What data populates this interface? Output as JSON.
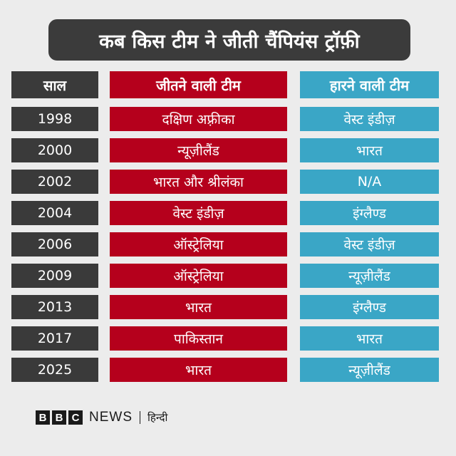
{
  "title": "कब किस टीम ने जीती चैंपियंस ट्रॉफ़ी",
  "table": {
    "headers": {
      "year": "साल",
      "winner": "जीतने वाली टीम",
      "loser": "हारने वाली टीम"
    },
    "rows": [
      {
        "year": "1998",
        "winner": "दक्षिण अफ़्रीका",
        "loser": "वेस्ट इंडीज़"
      },
      {
        "year": "2000",
        "winner": "न्यूज़ीलैंड",
        "loser": "भारत"
      },
      {
        "year": "2002",
        "winner": "भारत और श्रीलंका",
        "loser": "N/A"
      },
      {
        "year": "2004",
        "winner": "वेस्ट इंडीज़",
        "loser": "इंग्लैण्ड"
      },
      {
        "year": "2006",
        "winner": "ऑस्ट्रेलिया",
        "loser": "वेस्ट इंडीज़"
      },
      {
        "year": "2009",
        "winner": "ऑस्ट्रेलिया",
        "loser": "न्यूज़ीलैंड"
      },
      {
        "year": "2013",
        "winner": "भारत",
        "loser": "इंग्लैण्ड"
      },
      {
        "year": "2017",
        "winner": "पाकिस्तान",
        "loser": "भारत"
      },
      {
        "year": "2025",
        "winner": "भारत",
        "loser": "न्यूज़ीलैंड"
      }
    ]
  },
  "footer": {
    "bbc_letters": [
      "B",
      "B",
      "C"
    ],
    "news": "NEWS",
    "language": "हिन्दी"
  },
  "colors": {
    "background": "#ececec",
    "title_bg": "#3b3b3b",
    "year_col": "#3a3a3a",
    "winner_col": "#b5001c",
    "loser_col": "#3aa6c6"
  }
}
